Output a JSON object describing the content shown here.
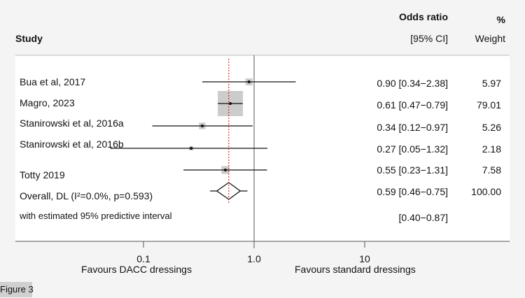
{
  "chart_data": {
    "type": "forest",
    "header": {
      "study": "Study",
      "effect_line1": "Odds ratio",
      "effect_line2": "[95% CI]",
      "weight_line1": "%",
      "weight_line2": "Weight"
    },
    "x_scale": "log",
    "xlim": [
      0.01,
      30
    ],
    "x_ticks": [
      {
        "value": 0.1,
        "label": "0.1"
      },
      {
        "value": 1,
        "label": "1.0"
      },
      {
        "value": 10,
        "label": "10"
      }
    ],
    "null_line": 1,
    "left_label": "Favours DACC dressings",
    "right_label": "Favours standard dressings",
    "studies": [
      {
        "name": "Bua et al, 2017",
        "or": 0.9,
        "lo": 0.34,
        "hi": 2.38,
        "ci_text": "0.90 [0.34−2.38]",
        "weight": 5.97,
        "weight_text": "5.97"
      },
      {
        "name": "Magro, 2023",
        "or": 0.61,
        "lo": 0.47,
        "hi": 0.79,
        "ci_text": "0.61 [0.47−0.79]",
        "weight": 79.01,
        "weight_text": "79.01"
      },
      {
        "name": "Stanirowski et al, 2016a",
        "or": 0.34,
        "lo": 0.12,
        "hi": 0.97,
        "ci_text": "0.34 [0.12−0.97]",
        "weight": 5.26,
        "weight_text": "5.26"
      },
      {
        "name": "Stanirowski et al, 2016b",
        "or": 0.27,
        "lo": 0.05,
        "hi": 1.32,
        "ci_text": "0.27 [0.05−1.32]",
        "weight": 2.18,
        "weight_text": "2.18"
      },
      {
        "name": "Totty 2019",
        "or": 0.55,
        "lo": 0.23,
        "hi": 1.31,
        "ci_text": "0.55 [0.23−1.31]",
        "weight": 7.58,
        "weight_text": "7.58"
      }
    ],
    "overall": {
      "label": "Overall, DL (I²=0.0%, p=0.593)",
      "or": 0.59,
      "lo": 0.46,
      "hi": 0.75,
      "ci_text": "0.59 [0.46−0.75]",
      "weight_text": "100.00"
    },
    "predictive": {
      "label": "with estimated 95% predictive interval",
      "lo": 0.4,
      "hi": 0.87,
      "ci_text": "[0.40−0.87]"
    },
    "colors": {
      "box": "#cccccc",
      "line": "#111111",
      "overall_line": "#e00000",
      "panel": "#ffffff",
      "background": "#f4f4f4"
    }
  },
  "figure_label": "Figure 3"
}
